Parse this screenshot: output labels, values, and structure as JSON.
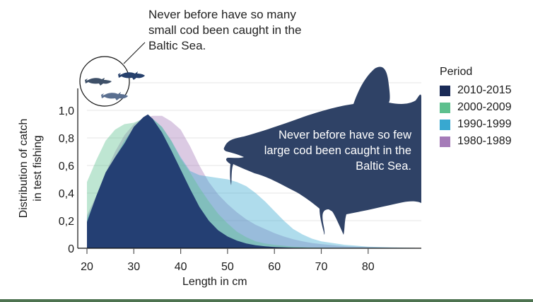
{
  "chart_data": {
    "type": "area",
    "title": "",
    "xlabel": "Length in cm",
    "ylabel": "Distribution of catch in test fishing",
    "x_ticks": [
      20,
      30,
      40,
      50,
      60,
      70,
      80
    ],
    "y_ticks": [
      "0",
      "0,2",
      "0,4",
      "0,6",
      "0,8",
      "1,0"
    ],
    "xlim": [
      20,
      92
    ],
    "ylim": [
      0,
      1.1
    ],
    "grid": "horizontal",
    "legend_title": "Period",
    "legend_position": "right",
    "x": [
      20,
      22,
      24,
      26,
      28,
      30,
      32,
      33,
      34,
      36,
      38,
      40,
      42,
      44,
      46,
      48,
      50,
      52,
      54,
      56,
      58,
      60,
      62,
      64,
      66,
      68,
      70,
      75,
      80,
      85,
      90
    ],
    "series": [
      {
        "name": "1980-1989",
        "color": "#a57bb8",
        "values": [
          0.24,
          0.38,
          0.55,
          0.7,
          0.82,
          0.9,
          0.94,
          0.95,
          0.96,
          0.96,
          0.92,
          0.86,
          0.74,
          0.6,
          0.48,
          0.39,
          0.32,
          0.26,
          0.21,
          0.17,
          0.14,
          0.11,
          0.085,
          0.065,
          0.05,
          0.038,
          0.03,
          0.015,
          0.008,
          0.004,
          0.002
        ]
      },
      {
        "name": "1990-1999",
        "color": "#38a8d0",
        "values": [
          0.22,
          0.36,
          0.52,
          0.66,
          0.78,
          0.87,
          0.93,
          0.95,
          0.94,
          0.88,
          0.78,
          0.66,
          0.56,
          0.53,
          0.52,
          0.51,
          0.5,
          0.48,
          0.45,
          0.4,
          0.34,
          0.27,
          0.2,
          0.14,
          0.1,
          0.07,
          0.05,
          0.025,
          0.012,
          0.006,
          0.003
        ]
      },
      {
        "name": "2000-2009",
        "color": "#5dc08e",
        "values": [
          0.48,
          0.64,
          0.78,
          0.86,
          0.9,
          0.91,
          0.94,
          0.95,
          0.94,
          0.88,
          0.78,
          0.65,
          0.55,
          0.44,
          0.34,
          0.25,
          0.18,
          0.12,
          0.08,
          0.05,
          0.035,
          0.025,
          0.018,
          0.012,
          0.008,
          0.005,
          0.004,
          0.002,
          0.001,
          0,
          0
        ]
      },
      {
        "name": "2010-2015",
        "color": "#1d3a6e",
        "values": [
          0.19,
          0.38,
          0.55,
          0.66,
          0.76,
          0.88,
          0.95,
          0.97,
          0.94,
          0.84,
          0.71,
          0.57,
          0.43,
          0.3,
          0.2,
          0.13,
          0.085,
          0.055,
          0.035,
          0.022,
          0.014,
          0.009,
          0.006,
          0.004,
          0.003,
          0.002,
          0.001,
          0,
          0,
          0,
          0
        ]
      }
    ],
    "annotations": [
      "Never before have so many small cod been caught in the Baltic Sea.",
      "Never before have so few large cod been caught in the Baltic Sea."
    ]
  },
  "annotations": {
    "small_cod": "Never before have so many small cod been caught in the Baltic Sea.",
    "large_cod": "Never before have so few large cod been caught in the Baltic Sea."
  },
  "axes": {
    "xlabel": "Length in cm",
    "ylabel_line1": "Distribution of catch",
    "ylabel_line2": "in test fishing"
  },
  "legend": {
    "title": "Period",
    "items": [
      {
        "label": "2010-2015",
        "color": "#1a2b57"
      },
      {
        "label": "2000-2009",
        "color": "#5dc08e"
      },
      {
        "label": "1990-1999",
        "color": "#38a8d0"
      },
      {
        "label": "1980-1989",
        "color": "#a57bb8"
      }
    ]
  },
  "colors": {
    "fish": "#2f4266",
    "small_fish": "#3e5a86",
    "footer_bar": "#4d7350",
    "grid": "#e4e4e4"
  }
}
